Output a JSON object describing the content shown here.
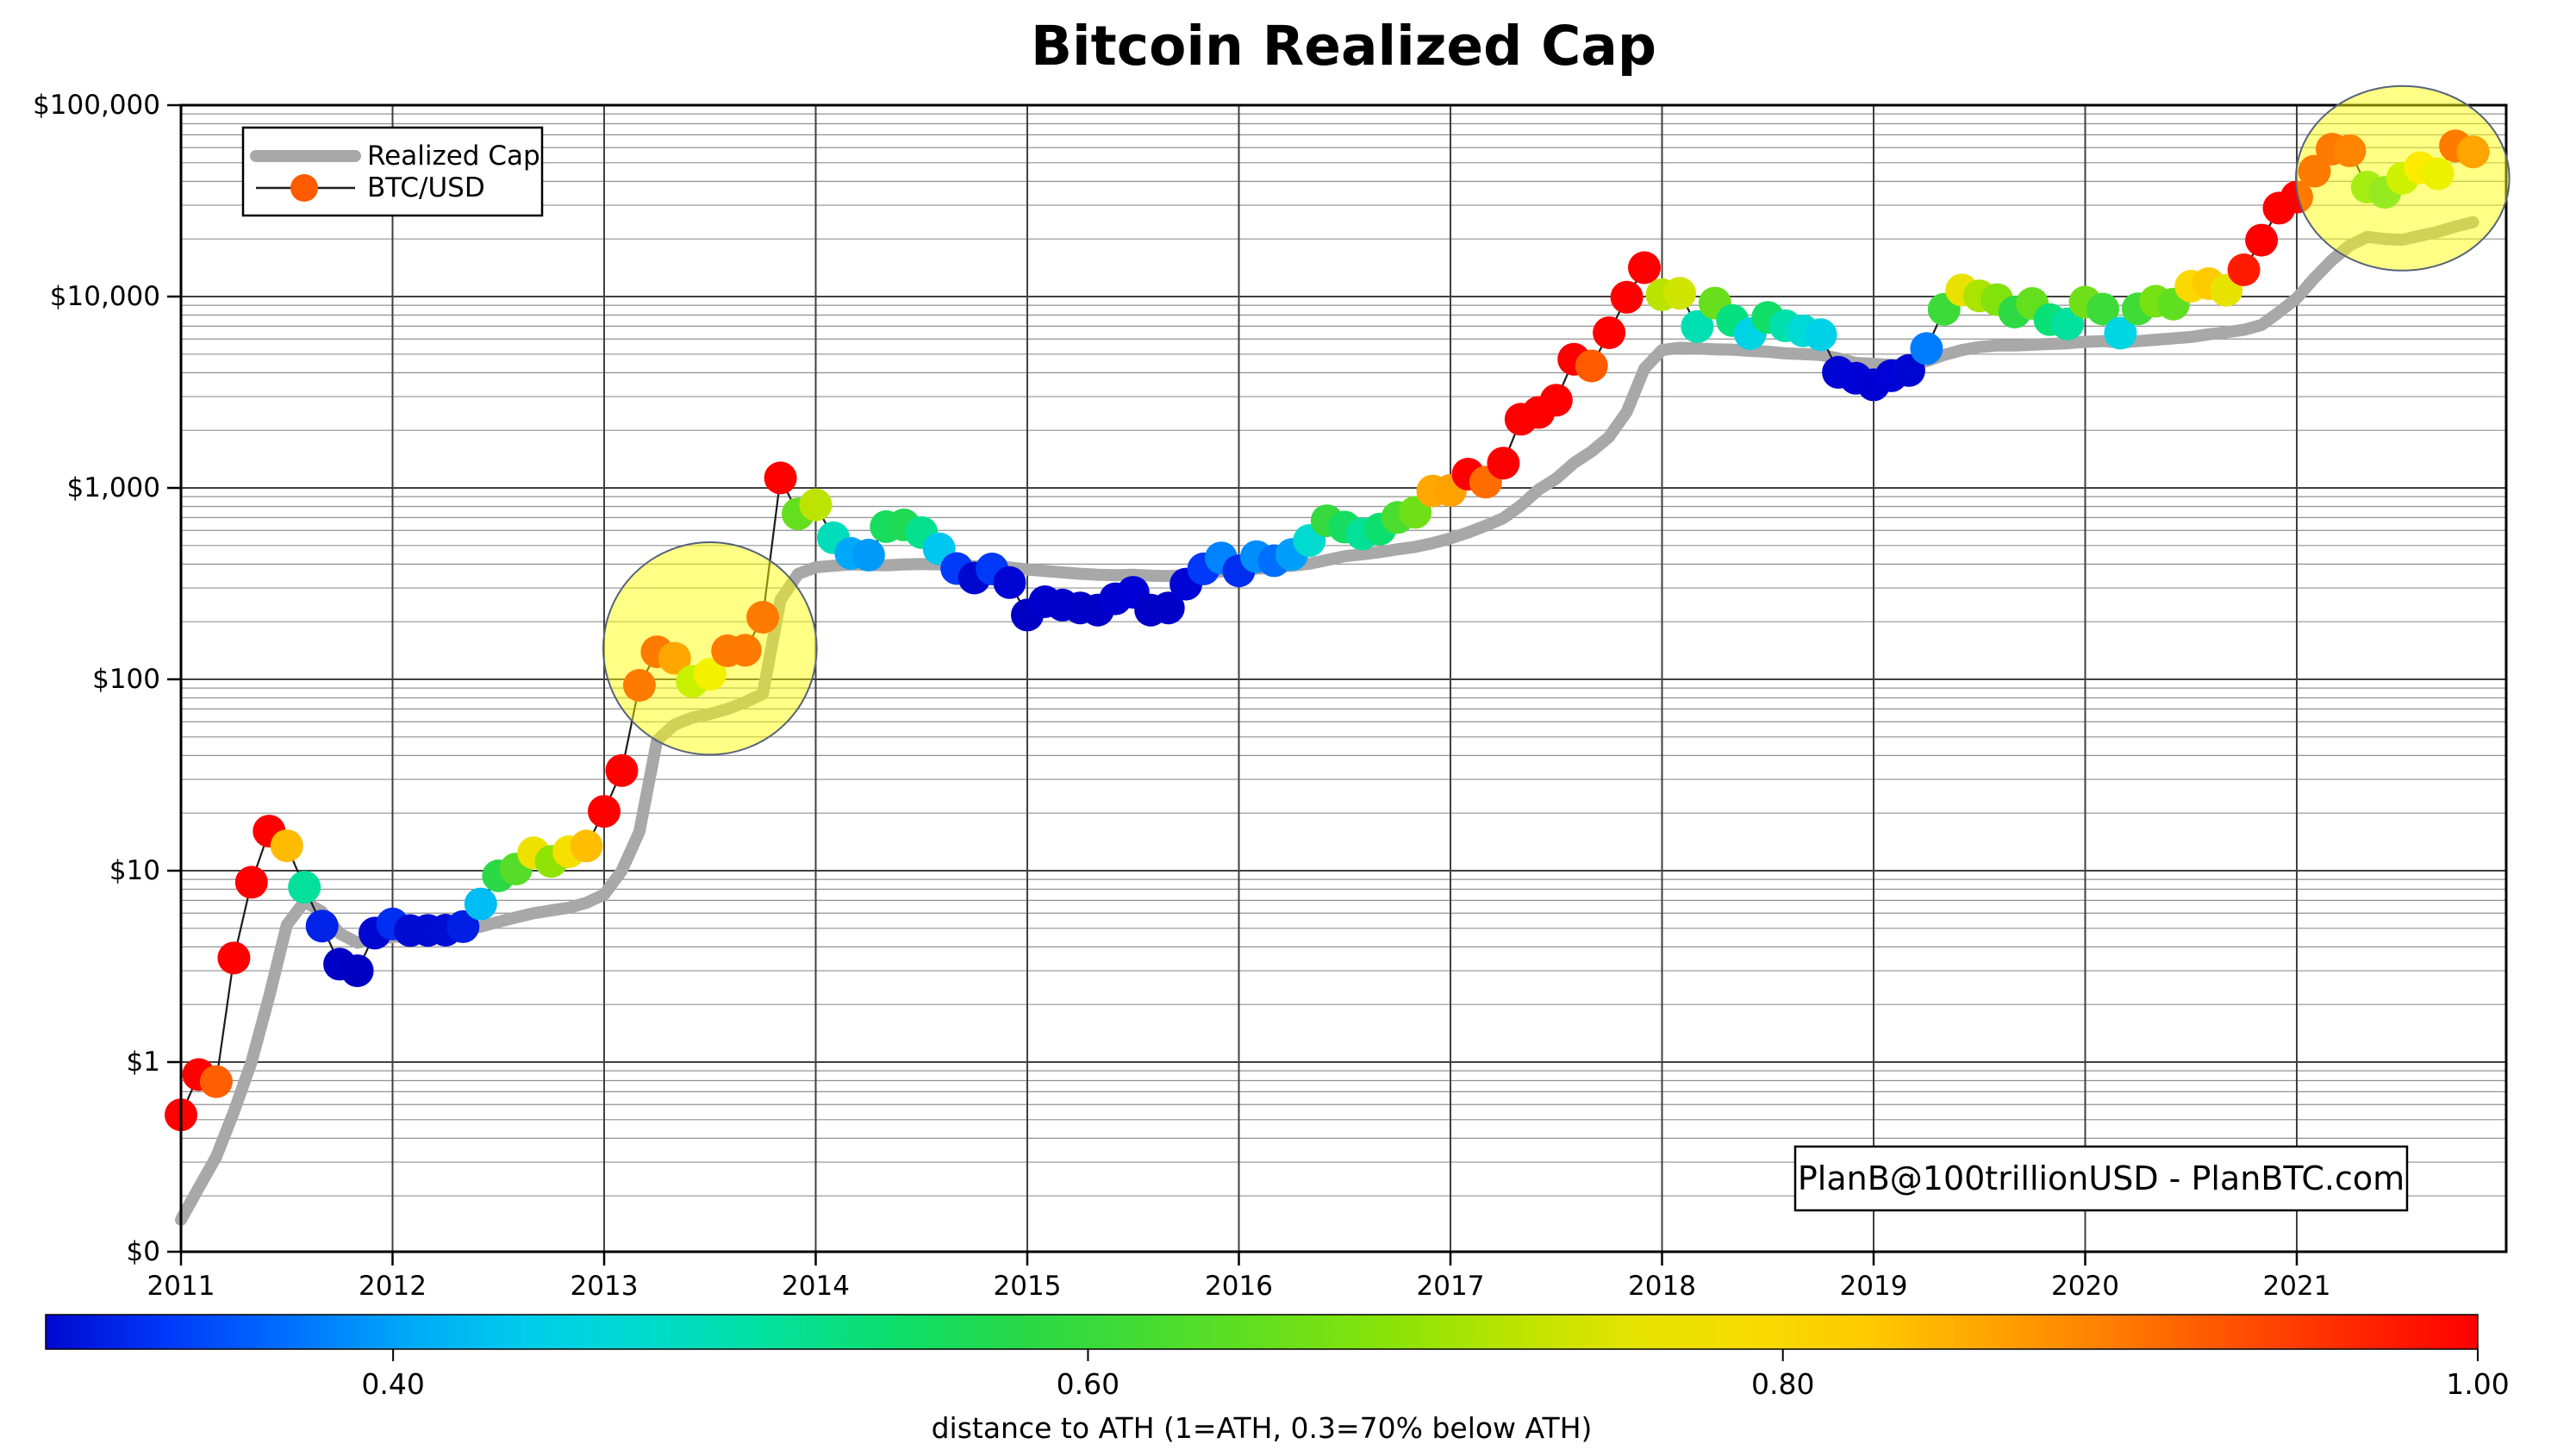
{
  "title": "Bitcoin Realized Cap",
  "legend": {
    "realized_cap_label": "Realized Cap",
    "btc_usd_label": "BTC/USD",
    "marker_color": "#fe5a00",
    "line_color": "#a8a8a8"
  },
  "watermark": {
    "text": "PlanB@100trillionUSD  -  PlanBTC.com"
  },
  "y_axis": {
    "ticks": [
      {
        "label": "$100,000",
        "value": 100000
      },
      {
        "label": "$10,000",
        "value": 10000
      },
      {
        "label": "$1,000",
        "value": 1000
      },
      {
        "label": "$100",
        "value": 100
      },
      {
        "label": "$10",
        "value": 10
      },
      {
        "label": "$1",
        "value": 1
      },
      {
        "label": "$0",
        "value": 0
      }
    ]
  },
  "x_axis": {
    "tick_labels": [
      "2011",
      "2012",
      "2013",
      "2014",
      "2015",
      "2016",
      "2017",
      "2018",
      "2019",
      "2020",
      "2021"
    ]
  },
  "colorbar": {
    "label": "distance to ATH (1=ATH, 0.3=70% below ATH)",
    "min": 0.3,
    "max": 1.0,
    "ticks": [
      {
        "value": 0.4,
        "label": "0.40"
      },
      {
        "value": 0.6,
        "label": "0.60"
      },
      {
        "value": 0.8,
        "label": "0.80"
      },
      {
        "value": 1.0,
        "label": "1.00"
      }
    ]
  },
  "colors": {
    "realized_cap_line": "#a8a8a8",
    "scatter_connect_line": "#1c1c1c",
    "grid_major": "#404040",
    "grid_minor": "#919191",
    "frame": "#000000",
    "highlight_fill_rgba": "255,255,0,0.48",
    "highlight_stroke": "#55627a",
    "distance_color_scale": [
      [
        0.18,
        "#0000c0"
      ],
      [
        0.26,
        "#0000d8"
      ],
      [
        0.3,
        "#0008d0"
      ],
      [
        0.34,
        "#0040ff"
      ],
      [
        0.38,
        "#0080ff"
      ],
      [
        0.42,
        "#00c4f4"
      ],
      [
        0.46,
        "#00d8e0"
      ],
      [
        0.5,
        "#00e0a8"
      ],
      [
        0.54,
        "#0ae070"
      ],
      [
        0.58,
        "#28d848"
      ],
      [
        0.62,
        "#48dc30"
      ],
      [
        0.66,
        "#6ee018"
      ],
      [
        0.7,
        "#96e400"
      ],
      [
        0.74,
        "#d8e400"
      ],
      [
        0.78,
        "#f5e000"
      ],
      [
        0.82,
        "#ffd000"
      ],
      [
        0.86,
        "#ffa300"
      ],
      [
        0.9,
        "#ff7700"
      ],
      [
        0.94,
        "#ff4400"
      ],
      [
        0.98,
        "#ff1500"
      ],
      [
        1.0,
        "#ff0000"
      ]
    ]
  },
  "chart_data": {
    "type": "scatter",
    "x_start": "2011-01",
    "x_end": "2021-11",
    "x_unit": "month",
    "y_scale": "log (symlog, $0 shown at axis bottom)",
    "ylim": [
      0,
      100000
    ],
    "note": "dot color = monthly close / running all-time-high of monthly closes, per colorbar",
    "btc_usd_monthly_close": {
      "2011": [
        0.53,
        0.86,
        0.79,
        3.5,
        8.7,
        16.1,
        13.5,
        8.2,
        5.14,
        3.25,
        3.0,
        4.72
      ],
      "2012": [
        5.27,
        4.87,
        4.88,
        4.89,
        5.1,
        6.7,
        9.4,
        10.2,
        12.4,
        11.18,
        12.56,
        13.45
      ],
      "2013": [
        20.41,
        33.38,
        93.03,
        139.23,
        128.8,
        97.5,
        106.21,
        141.0,
        141.9,
        211.0,
        1127.45,
        732.0
      ],
      "2014": [
        815.94,
        549.0,
        454.83,
        445.6,
        627.91,
        641.0,
        585.0,
        481.0,
        379.24,
        338.32,
        377.32,
        320.19
      ],
      "2015": [
        216.87,
        254.26,
        244.24,
        235.94,
        229.95,
        263.35,
        284.65,
        230.06,
        236.06,
        314.17,
        377.41,
        430.57
      ],
      "2016": [
        368.77,
        437.7,
        416.73,
        448.32,
        531.39,
        673.34,
        624.68,
        575.47,
        609.74,
        700.97,
        745.69,
        963.74
      ],
      "2017": [
        970.4,
        1179.97,
        1071.79,
        1347.89,
        2286.41,
        2480.84,
        2875.34,
        4703.39,
        4338.71,
        6468.4,
        9916.54,
        14156.4
      ],
      "2018": [
        10221.1,
        10397.9,
        6973.53,
        9240.55,
        7494.17,
        6404.0,
        7780.44,
        7037.58,
        6625.56,
        6317.61,
        4017.27,
        3742.7
      ],
      "2019": [
        3457.79,
        3854.95,
        4105.4,
        5350.73,
        8574.5,
        10817.16,
        10085.63,
        9630.66,
        8293.87,
        9199.58,
        7569.63,
        7193.6
      ],
      "2020": [
        9350.53,
        8599.51,
        6438.64,
        8629.0,
        9454.8,
        9137.99,
        11323.47,
        11680.82,
        10784.49,
        13797.3,
        19698.09,
        28990.08
      ],
      "2021": [
        33108.11,
        45164.0,
        58918.83,
        57750.18,
        37332.86,
        35040.84,
        41553.71,
        47166.69,
        43790.89,
        61318.96,
        57005.43
      ]
    },
    "realized_cap_monthly": {
      "2011": [
        0.15,
        0.22,
        0.32,
        0.55,
        1.0,
        2.2,
        5.2,
        6.9,
        6.1,
        4.7,
        4.2,
        4.4
      ],
      "2012": [
        4.5,
        4.6,
        4.7,
        4.8,
        4.9,
        5.1,
        5.4,
        5.7,
        6.0,
        6.2,
        6.4,
        6.8
      ],
      "2013": [
        7.5,
        10,
        16,
        48,
        58,
        63,
        66,
        70,
        76,
        84,
        260,
        355
      ],
      "2014": [
        385,
        392,
        398,
        396,
        394,
        398,
        400,
        398,
        394,
        390,
        388,
        384
      ],
      "2015": [
        375,
        368,
        362,
        356,
        352,
        350,
        352,
        348,
        346,
        350,
        358,
        366
      ],
      "2016": [
        372,
        378,
        385,
        392,
        402,
        420,
        440,
        450,
        462,
        478,
        492,
        515
      ],
      "2017": [
        545,
        585,
        635,
        695,
        810,
        980,
        1120,
        1350,
        1550,
        1850,
        2500,
        4200
      ],
      "2018": [
        5250,
        5400,
        5350,
        5300,
        5280,
        5200,
        5150,
        5050,
        5000,
        4950,
        4750,
        4500
      ],
      "2019": [
        4450,
        4400,
        4450,
        4600,
        4950,
        5250,
        5450,
        5550,
        5550,
        5600,
        5650,
        5700
      ],
      "2020": [
        5800,
        5850,
        5750,
        5850,
        5950,
        6050,
        6150,
        6350,
        6500,
        6700,
        7100,
        8300
      ],
      "2021": [
        9800,
        12500,
        15500,
        18500,
        20500,
        20000,
        19800,
        20800,
        21800,
        23200,
        24500
      ]
    },
    "highlights": [
      {
        "name": "2013-bull-market-circle",
        "month_index": 30,
        "center_value": 145,
        "rx_months": 6.05,
        "ry_decades": 0.555
      },
      {
        "name": "2021-bull-market-circle",
        "month_index": 126,
        "center_value": 41500,
        "rx_months": 6.05,
        "ry_decades": 0.482
      }
    ]
  }
}
